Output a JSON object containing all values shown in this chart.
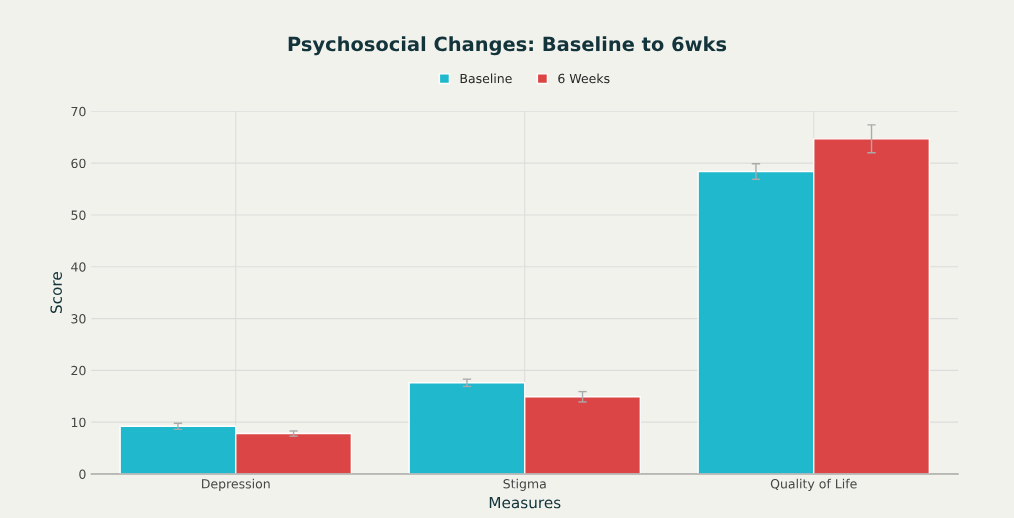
{
  "chart_data": {
    "type": "bar",
    "title": "Psychosocial Changes: Baseline to 6wks",
    "xlabel": "Measures",
    "ylabel": "Score",
    "categories": [
      "Depression",
      "Stigma",
      "Quality of Life"
    ],
    "series": [
      {
        "name": "Baseline",
        "color": "#1fb8cd",
        "values": [
          9.2,
          17.6,
          58.4
        ],
        "errors": [
          0.6,
          0.7,
          1.5
        ]
      },
      {
        "name": "6 Weeks",
        "color": "#db4545",
        "values": [
          7.8,
          14.9,
          64.7
        ],
        "errors": [
          0.5,
          1.0,
          2.7
        ]
      }
    ],
    "ylim": [
      0,
      70
    ],
    "yticks": [
      0,
      10,
      20,
      30,
      40,
      50,
      60,
      70
    ],
    "grid": true,
    "legend": "top"
  }
}
